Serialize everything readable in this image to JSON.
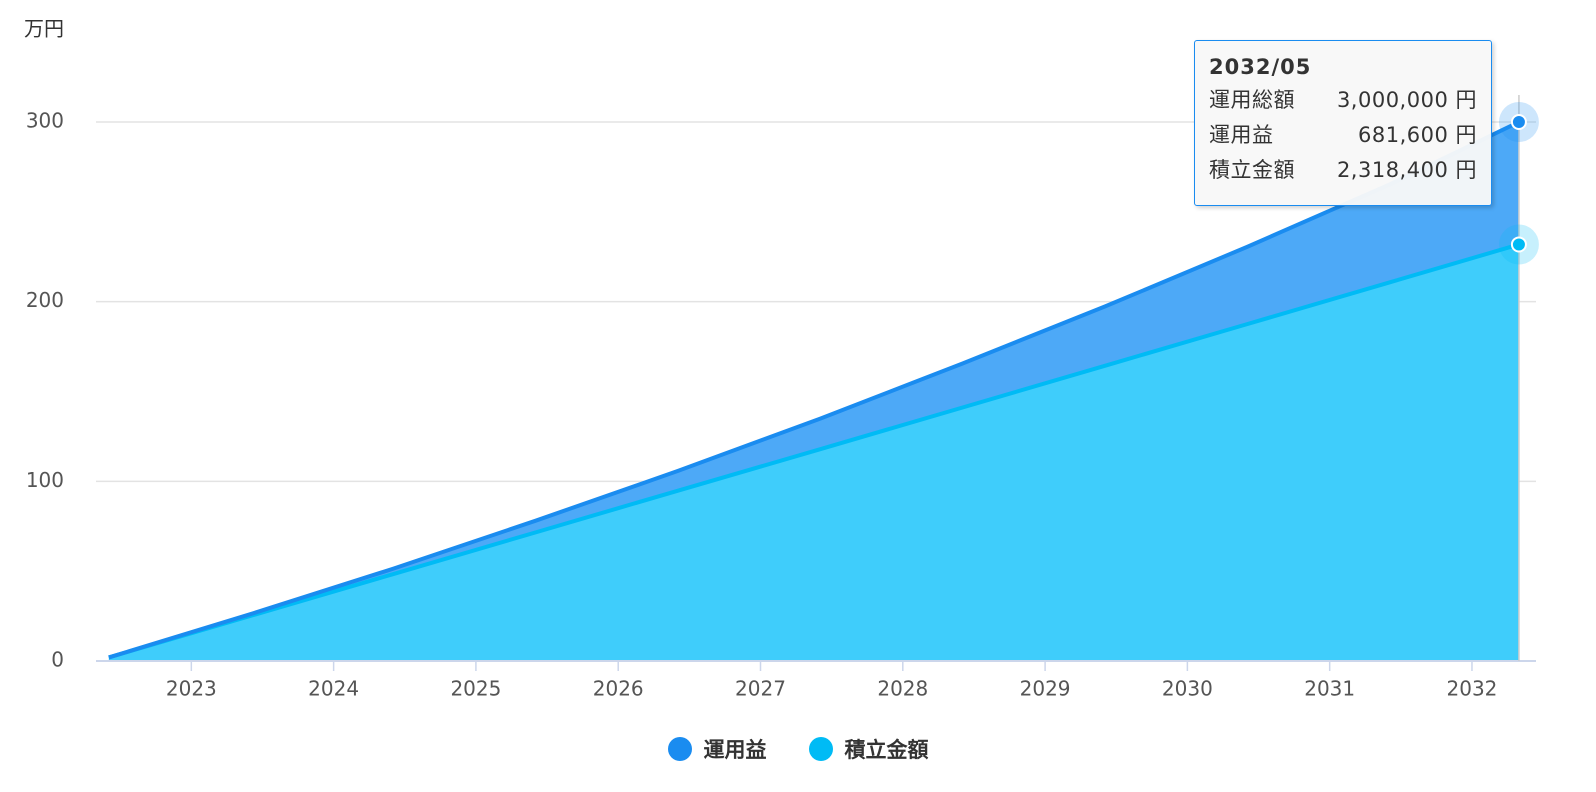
{
  "chart_data": {
    "type": "stacked_area",
    "y_label": "万円",
    "x": [
      2022.42,
      2023.42,
      2024.42,
      2025.42,
      2026.42,
      2027.42,
      2028.42,
      2029.42,
      2030.42,
      2031.42,
      2032.33
    ],
    "series": [
      {
        "name": "運用益",
        "color": "#1a8cf0",
        "values": [
          0,
          1,
          3,
          6.5,
          11,
          17,
          24.5,
          33,
          43,
          54.5,
          68.16
        ]
      },
      {
        "name": "積立金額",
        "color": "#00bbf5",
        "values": [
          2,
          25.2,
          48.4,
          71.6,
          94.8,
          117.9,
          141.1,
          164.3,
          187.5,
          210.7,
          231.84
        ]
      }
    ],
    "xlim": [
      2022.33,
      2032.45
    ],
    "xticks": [
      2023,
      2024,
      2025,
      2026,
      2027,
      2028,
      2029,
      2030,
      2031,
      2032
    ],
    "ylim": [
      0,
      300
    ],
    "yticks": [
      0,
      100,
      200,
      300
    ],
    "grid": true,
    "tooltip": {
      "title": "2032/05",
      "rows": [
        {
          "label": "運用総額",
          "value": "3,000,000 円"
        },
        {
          "label": "運用益",
          "value": "681,600 円"
        },
        {
          "label": "積立金額",
          "value": "2,318,400 円"
        }
      ]
    }
  }
}
